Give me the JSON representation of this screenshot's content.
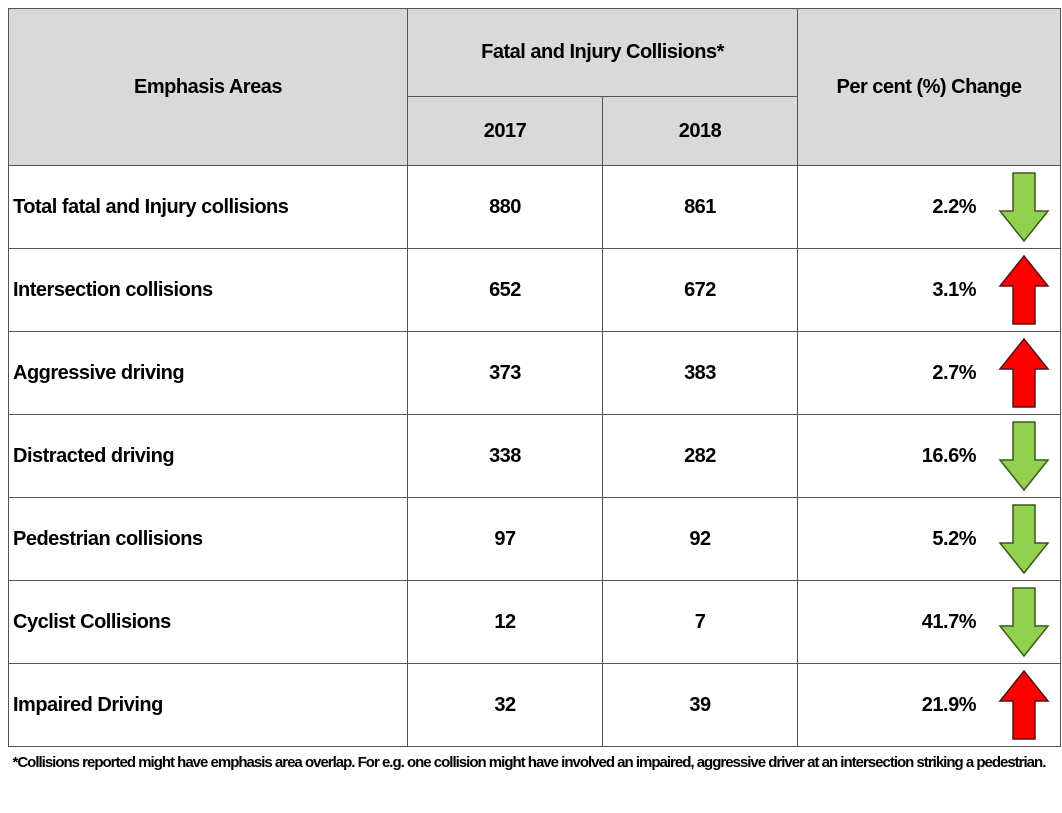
{
  "header": {
    "emphasis": "Emphasis Areas",
    "group": "Fatal and Injury Collisions*",
    "change": "Per cent (%) Change",
    "years": [
      "2017",
      "2018"
    ]
  },
  "rows": [
    [
      "Total fatal and  Injury collisions",
      880,
      861,
      "2.2%"
    ],
    [
      "Intersection collisions",
      652,
      672,
      "3.1%"
    ],
    [
      "Aggressive driving",
      373,
      383,
      "2.7%"
    ],
    [
      "Distracted driving",
      338,
      282,
      "16.6%"
    ],
    [
      "Pedestrian collisions",
      97,
      92,
      "5.2%"
    ],
    [
      "Cyclist Collisions",
      12,
      7,
      "41.7%"
    ],
    [
      "Impaired Driving",
      32,
      39,
      "21.9%"
    ]
  ],
  "footnote": "*Collisions reported might have emphasis area overlap. For e.g. one collision might have involved an impaired, aggressive driver at an intersection striking a pedestrian."
}
